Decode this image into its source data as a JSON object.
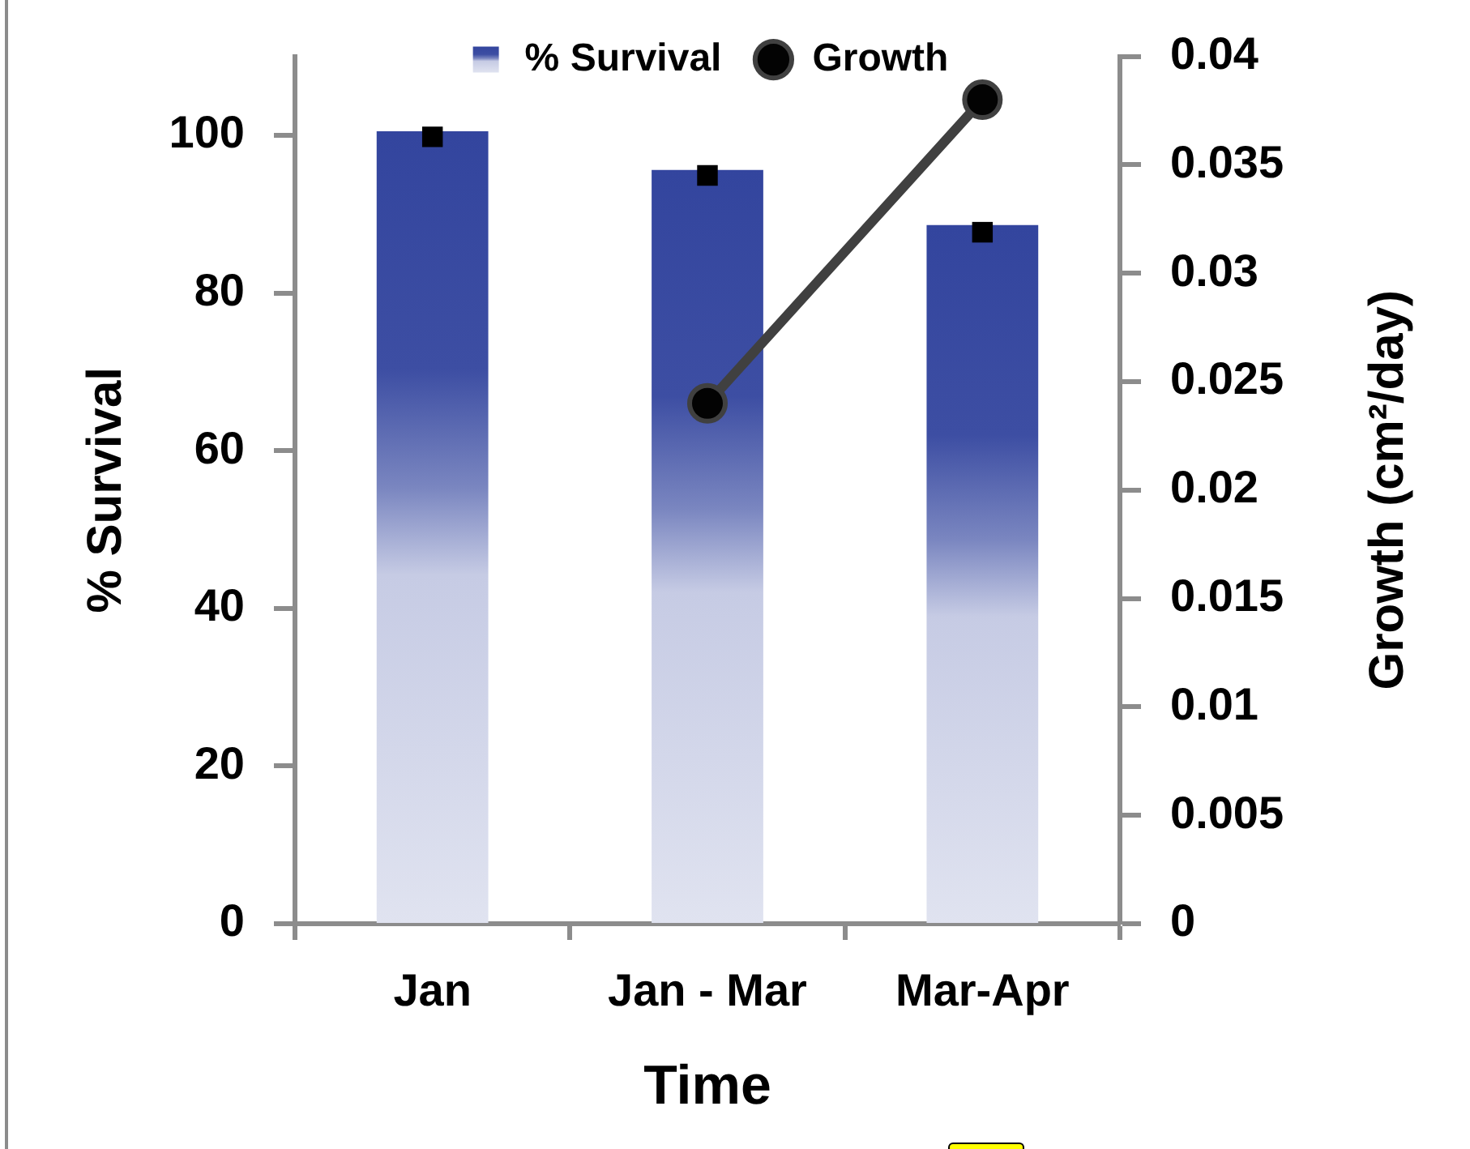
{
  "chart_data": {
    "type": "bar",
    "categories": [
      "Jan",
      "Jan - Mar",
      "Mar-Apr"
    ],
    "xlabel": "Time",
    "ylabel": "% Survival",
    "y2label": "Growth (cm²/day)",
    "series": [
      {
        "name": "% Survival",
        "color": "#33459e",
        "values": [
          100.5,
          95.6,
          88.6
        ]
      },
      {
        "type": "scatter",
        "color": "#000000",
        "x": [
          "Jan",
          "Jan - Mar",
          "Mar-Apr"
        ],
        "values": [
          99.8,
          94.9,
          87.7
        ],
        "marker": "square"
      },
      {
        "name": "Growth",
        "type": "line",
        "color": "#404040",
        "values": [
          null,
          0.024,
          0.038
        ],
        "axis": "y2",
        "marker": "circle"
      }
    ],
    "ylim": [
      0,
      110
    ],
    "yticks": [
      0,
      20,
      40,
      60,
      80,
      100
    ],
    "y2lim": [
      0,
      0.04
    ],
    "y2ticks": [
      0,
      0.005,
      0.01,
      0.015,
      0.02,
      0.025,
      0.03,
      0.035,
      0.04
    ],
    "grid": false,
    "legend": "top"
  }
}
